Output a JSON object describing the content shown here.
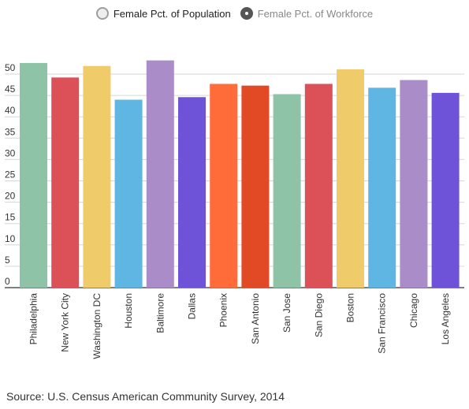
{
  "legend": [
    {
      "label": "Female Pct. of Population",
      "selected": false
    },
    {
      "label": "Female Pct. of Workforce",
      "selected": true
    }
  ],
  "source": "Source: U.S. Census American Community Survey, 2014",
  "chart_data": {
    "type": "bar",
    "categories": [
      "Philadelphia",
      "New York City",
      "Washington DC",
      "Houston",
      "Baltimore",
      "Dallas",
      "Phoenix",
      "San Antonio",
      "San Jose",
      "San Diego",
      "Boston",
      "San Francisco",
      "Chicago",
      "Los Angeles"
    ],
    "values": [
      52.6,
      49.2,
      51.9,
      44.0,
      53.2,
      44.6,
      47.7,
      47.3,
      45.3,
      47.7,
      51.1,
      46.8,
      48.6,
      45.6
    ],
    "colors": [
      "#8ec3a7",
      "#dc5158",
      "#efcb6a",
      "#5fb6e3",
      "#aa8dc8",
      "#6e53d9",
      "#ff6c3a",
      "#e24a26",
      "#8ec3a7",
      "#dc5158",
      "#efcb6a",
      "#5fb6e3",
      "#aa8dc8",
      "#6e53d9"
    ],
    "yticks": [
      0,
      5,
      10,
      15,
      20,
      25,
      30,
      35,
      40,
      45,
      50
    ],
    "ylim": [
      0,
      55
    ],
    "grid": true,
    "legend_position": "top"
  }
}
